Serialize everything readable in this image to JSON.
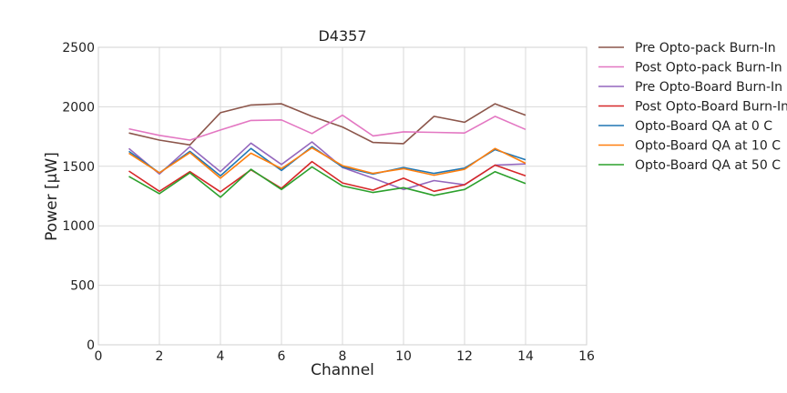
{
  "chart_data": {
    "type": "line",
    "title": "D4357",
    "xlabel": "Channel",
    "ylabel": "Power [µW]",
    "xlim": [
      0,
      16
    ],
    "ylim": [
      0,
      2500
    ],
    "xticks": [
      "0",
      "2",
      "4",
      "6",
      "8",
      "10",
      "12",
      "14",
      "16"
    ],
    "yticks": [
      "0",
      "500",
      "1000",
      "1500",
      "2000",
      "2500"
    ],
    "grid": true,
    "legend_position": "outside-right",
    "x": [
      1,
      2,
      3,
      4,
      5,
      6,
      7,
      8,
      9,
      10,
      11,
      12,
      13,
      14
    ],
    "series": [
      {
        "name": "Pre Opto-pack Burn-In",
        "color": "#8c564b",
        "values": [
          1780,
          1720,
          1680,
          1950,
          2015,
          2025,
          1920,
          1830,
          1700,
          1690,
          1920,
          1870,
          2025,
          1930
        ]
      },
      {
        "name": "Post Opto-pack Burn-In",
        "color": "#e377c2",
        "values": [
          1815,
          1760,
          1720,
          1805,
          1885,
          1890,
          1775,
          1930,
          1755,
          1790,
          1785,
          1780,
          1920,
          1810
        ]
      },
      {
        "name": "Pre Opto-Board Burn-In",
        "color": "#9467bd",
        "values": [
          1650,
          1435,
          1665,
          1455,
          1695,
          1515,
          1705,
          1490,
          1400,
          1305,
          1380,
          1345,
          1510,
          1520
        ]
      },
      {
        "name": "Post Opto-Board Burn-In",
        "color": "#d62728",
        "values": [
          1460,
          1290,
          1455,
          1285,
          1470,
          1315,
          1540,
          1360,
          1300,
          1400,
          1290,
          1345,
          1510,
          1420
        ]
      },
      {
        "name": "Opto-Board QA at 0 C",
        "color": "#1f77b4",
        "values": [
          1625,
          1445,
          1625,
          1420,
          1650,
          1465,
          1665,
          1495,
          1435,
          1490,
          1440,
          1485,
          1640,
          1555
        ]
      },
      {
        "name": "Opto-Board QA at 10 C",
        "color": "#ff7f0e",
        "values": [
          1610,
          1445,
          1615,
          1400,
          1610,
          1480,
          1655,
          1505,
          1440,
          1480,
          1425,
          1475,
          1650,
          1525
        ]
      },
      {
        "name": "Opto-Board QA at 50 C",
        "color": "#2ca02c",
        "values": [
          1415,
          1270,
          1445,
          1240,
          1475,
          1305,
          1495,
          1335,
          1280,
          1320,
          1255,
          1305,
          1455,
          1355
        ]
      }
    ]
  }
}
